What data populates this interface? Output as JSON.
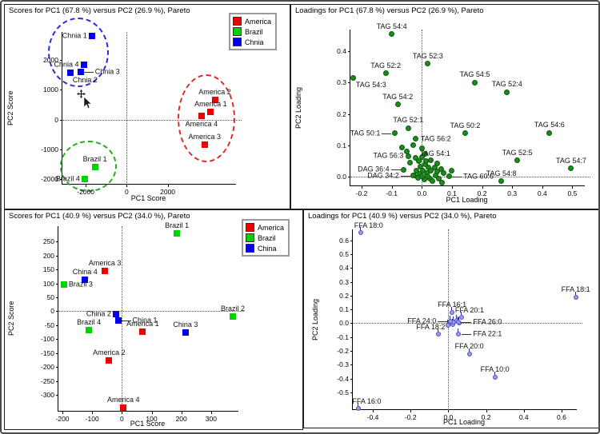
{
  "figure": {
    "background": "#ffffff",
    "accent_colors": {
      "america": "#ef0000",
      "brazil": "#00d300",
      "china": "#0000ee",
      "tag_green": "#1d8a1d",
      "ffa_lavender": "#9b9be8"
    }
  },
  "chart_data": [
    {
      "type": "scatter",
      "title": "Scores for PC1 (67.8 %) versus PC2 (26.9 %), Pareto",
      "xlabel": "PC1 Score",
      "ylabel": "PC2 Score",
      "xlim": [
        -3137,
        5373
      ],
      "ylim": [
        -2190,
        2945
      ],
      "xticks": [
        [
          -2000,
          "-2000"
        ],
        [
          0,
          "0"
        ],
        [
          2000,
          "2000"
        ]
      ],
      "yticks": [
        [
          -2000,
          "-2000"
        ],
        [
          -1000,
          "-1000"
        ],
        [
          0,
          "0"
        ],
        [
          1000,
          "1000"
        ],
        [
          2000,
          "2000"
        ]
      ],
      "marker": "square",
      "groups": {
        "america": "#ef0000",
        "brazil": "#00d300",
        "china": "#0000ee"
      },
      "legend": [
        {
          "label": "America",
          "color": "#ef0000"
        },
        {
          "label": "Brazil",
          "color": "#00d300"
        },
        {
          "label": "Chnia",
          "color": "#0000ee"
        }
      ],
      "points": [
        {
          "label": "Chnia 1",
          "x": -1700,
          "y": 2800,
          "g": "china",
          "lpos": "left"
        },
        {
          "label": "Chnia 4",
          "x": -2100,
          "y": 1850,
          "g": "china",
          "lpos": "left"
        },
        {
          "label": "Chnia 3",
          "x": -2250,
          "y": 1600,
          "g": "china",
          "lpos": "right-line"
        },
        {
          "label": "Chnia 2",
          "x": -2750,
          "y": 1570,
          "g": "china",
          "lpos": "below-right"
        },
        {
          "label": "America 2",
          "x": 4300,
          "y": 650,
          "g": "america",
          "lpos": "above"
        },
        {
          "label": "America 1",
          "x": 4100,
          "y": 250,
          "g": "america",
          "lpos": "above"
        },
        {
          "label": "America 4",
          "x": 3650,
          "y": 130,
          "g": "america",
          "lpos": "below"
        },
        {
          "label": "America 3",
          "x": 3800,
          "y": -840,
          "g": "america",
          "lpos": "above"
        },
        {
          "label": "Brazil 1",
          "x": -1550,
          "y": -1600,
          "g": "brazil",
          "lpos": "above"
        },
        {
          "label": "Brazil 4",
          "x": -2050,
          "y": -2000,
          "g": "brazil",
          "lpos": "left"
        }
      ],
      "extra_points": [],
      "ellipses": [
        {
          "cx": -2350,
          "cy": 2260,
          "rx": 1490,
          "ry": 1175,
          "color": "#2a2ae0"
        },
        {
          "cx": 3880,
          "cy": 50,
          "rx": 1410,
          "ry": 1480,
          "color": "#e02a2a"
        },
        {
          "cx": -1860,
          "cy": -1570,
          "rx": 1390,
          "ry": 865,
          "color": "#22b022"
        }
      ],
      "cursor": {
        "x": -2050,
        "y": 750
      }
    },
    {
      "type": "scatter",
      "title": "Loadings for PC1 (67.8 %) versus PC2 (26.9 %), Pareto",
      "xlabel": "PC1 Loading",
      "ylabel": "PC2 Loading",
      "xlim": [
        -0.2373,
        0.544
      ],
      "ylim": [
        -0.0308,
        0.4692
      ],
      "xticks": [
        [
          -0.2,
          "-0.2"
        ],
        [
          -0.1,
          "-0.1"
        ],
        [
          0,
          "0.0"
        ],
        [
          0.1,
          "0.1"
        ],
        [
          0.2,
          "0.2"
        ],
        [
          0.3,
          "0.3"
        ],
        [
          0.4,
          "0.4"
        ],
        [
          0.5,
          "0.5"
        ]
      ],
      "yticks": [
        [
          0,
          "0.0"
        ],
        [
          0.1,
          "0.1"
        ],
        [
          0.2,
          "0.2"
        ],
        [
          0.3,
          "0.3"
        ],
        [
          0.4,
          "0.4"
        ]
      ],
      "marker": "dot",
      "color": "#1d8a1d",
      "points": [
        {
          "label": "TAG 54:4",
          "x": -0.1,
          "y": 0.455,
          "lpos": "above"
        },
        {
          "label": "TAG 52:3",
          "x": 0.02,
          "y": 0.36,
          "lpos": "above"
        },
        {
          "label": "TAG 52:2",
          "x": -0.12,
          "y": 0.33,
          "lpos": "above"
        },
        {
          "label": "TAG 54:3",
          "x": -0.227,
          "y": 0.315,
          "lpos": "below-right"
        },
        {
          "label": "TAG 54:5",
          "x": 0.176,
          "y": 0.3,
          "lpos": "above"
        },
        {
          "label": "TAG 52:4",
          "x": 0.283,
          "y": 0.27,
          "lpos": "above"
        },
        {
          "label": "TAG 54:2",
          "x": -0.08,
          "y": 0.23,
          "lpos": "above"
        },
        {
          "label": "TAG 52:1",
          "x": -0.045,
          "y": 0.155,
          "lpos": "above"
        },
        {
          "label": "TAG 50:2",
          "x": 0.144,
          "y": 0.138,
          "lpos": "above"
        },
        {
          "label": "TAG 54:6",
          "x": 0.424,
          "y": 0.14,
          "lpos": "above"
        },
        {
          "label": "TAG 50:1",
          "x": -0.09,
          "y": 0.138,
          "lpos": "left-line"
        },
        {
          "label": "TAG 56:2",
          "x": -0.02,
          "y": 0.12,
          "lpos": "right"
        },
        {
          "label": "TAG 56:3",
          "x": -0.045,
          "y": 0.065,
          "lpos": "left"
        },
        {
          "label": "TAG 54:1",
          "x": 0.015,
          "y": 0.05,
          "lpos": "above-right"
        },
        {
          "label": "DAG 36:4",
          "x": -0.06,
          "y": 0.022,
          "lpos": "left-line"
        },
        {
          "label": "DAG 34:2",
          "x": -0.028,
          "y": 0.003,
          "lpos": "left-line"
        },
        {
          "label": "TAG 60:6",
          "x": 0.09,
          "y": 0.0,
          "lpos": "right-line"
        },
        {
          "label": "TAG 54:8",
          "x": 0.264,
          "y": -0.015,
          "lpos": "above"
        },
        {
          "label": "TAG 52:5",
          "x": 0.317,
          "y": 0.051,
          "lpos": "above"
        },
        {
          "label": "TAG 54:7",
          "x": 0.496,
          "y": 0.026,
          "lpos": "above"
        }
      ],
      "extra_points": [
        [
          -0.067,
          0.092
        ],
        [
          -0.05,
          0.08
        ],
        [
          -0.03,
          0.1
        ],
        [
          -0.02,
          0.06
        ],
        [
          -0.04,
          0.045
        ],
        [
          -0.01,
          0.05
        ],
        [
          0.0,
          0.09
        ],
        [
          0.0,
          0.062
        ],
        [
          -0.005,
          0.032
        ],
        [
          0.012,
          0.04
        ],
        [
          0.022,
          0.028
        ],
        [
          -0.018,
          0.018
        ],
        [
          -0.008,
          0.01
        ],
        [
          0.002,
          0.02
        ],
        [
          0.016,
          0.012
        ],
        [
          0.03,
          0.02
        ],
        [
          0.042,
          0.03
        ],
        [
          0.052,
          0.016
        ],
        [
          0.063,
          0.024
        ],
        [
          0.072,
          0.012
        ],
        [
          0.046,
          0.004
        ],
        [
          0.026,
          -0.006
        ],
        [
          0.008,
          -0.01
        ],
        [
          -0.012,
          -0.004
        ],
        [
          0.036,
          -0.014
        ],
        [
          0.056,
          -0.006
        ],
        [
          0.068,
          -0.02
        ],
        [
          0.1,
          0.02
        ],
        [
          0.0,
          0.0
        ],
        [
          0.02,
          0.002
        ],
        [
          -0.025,
          0.004
        ],
        [
          0.05,
          0.042
        ],
        [
          0.03,
          0.052
        ],
        [
          0.012,
          0.072
        ]
      ],
      "ellipses": []
    },
    {
      "type": "scatter",
      "title": "Scores for PC1 (40.9 %) versus PC2 (34.0 %), Pareto",
      "xlabel": "PC1 Score",
      "ylabel": "PC2 Score",
      "xlim": [
        -213.5,
        394.6
      ],
      "ylim": [
        -359,
        304.6
      ],
      "xticks": [
        [
          -200,
          "-200"
        ],
        [
          -100,
          "-100"
        ],
        [
          0,
          "0"
        ],
        [
          100,
          "100"
        ],
        [
          200,
          "200"
        ],
        [
          300,
          "300"
        ]
      ],
      "yticks": [
        [
          -300,
          "-300"
        ],
        [
          -250,
          "-250"
        ],
        [
          -200,
          "-200"
        ],
        [
          -150,
          "-150"
        ],
        [
          -100,
          "-100"
        ],
        [
          -50,
          "-50"
        ],
        [
          0,
          "0"
        ],
        [
          50,
          "50"
        ],
        [
          100,
          "100"
        ],
        [
          150,
          "150"
        ],
        [
          200,
          "200"
        ],
        [
          250,
          "250"
        ]
      ],
      "marker": "square",
      "groups": {
        "america": "#ef0000",
        "brazil": "#00d300",
        "china": "#0000ee"
      },
      "legend": [
        {
          "label": "America",
          "color": "#ef0000"
        },
        {
          "label": "Brazil",
          "color": "#00d300"
        },
        {
          "label": "China",
          "color": "#0000ee"
        }
      ],
      "points": [
        {
          "label": "Brazil 1",
          "x": 185,
          "y": 280,
          "g": "brazil",
          "lpos": "above"
        },
        {
          "label": "America 3",
          "x": -57,
          "y": 144,
          "g": "america",
          "lpos": "above"
        },
        {
          "label": "China 4",
          "x": -124,
          "y": 112,
          "g": "china",
          "lpos": "above"
        },
        {
          "label": "Brazil 3",
          "x": -195,
          "y": 95,
          "g": "brazil",
          "lpos": "right"
        },
        {
          "label": "China 2",
          "x": -20,
          "y": -9,
          "g": "china",
          "lpos": "left"
        },
        {
          "label": "China 1",
          "x": -13,
          "y": -33,
          "g": "china",
          "lpos": "right-line"
        },
        {
          "label": "Brazil 2",
          "x": 373,
          "y": -20,
          "g": "brazil",
          "lpos": "above"
        },
        {
          "label": "Brazil 4",
          "x": -111,
          "y": -66,
          "g": "brazil",
          "lpos": "above"
        },
        {
          "label": "America 1",
          "x": 70,
          "y": -72,
          "g": "america",
          "lpos": "above"
        },
        {
          "label": "China 3",
          "x": 214,
          "y": -75,
          "g": "china",
          "lpos": "above"
        },
        {
          "label": "America 2",
          "x": -43,
          "y": -175,
          "g": "america",
          "lpos": "above"
        },
        {
          "label": "America 4",
          "x": 5,
          "y": -345,
          "g": "america",
          "lpos": "above"
        }
      ],
      "extra_points": [],
      "ellipses": []
    },
    {
      "type": "scatter",
      "title": "Loadings for PC1 (40.9 %) versus PC2 (34.0 %), Pareto",
      "xlabel": "PC1 Loading",
      "ylabel": "PC2 Loading",
      "xlim": [
        -0.5064,
        0.6851
      ],
      "ylim": [
        -0.628,
        0.68
      ],
      "xticks": [
        [
          -0.4,
          "-0.4"
        ],
        [
          -0.2,
          "-0.2"
        ],
        [
          0,
          "0.0"
        ],
        [
          0.2,
          "0.2"
        ],
        [
          0.4,
          "0.4"
        ],
        [
          0.6,
          "0.6"
        ]
      ],
      "yticks": [
        [
          -0.5,
          "-0.5"
        ],
        [
          -0.4,
          "-0.4"
        ],
        [
          -0.3,
          "-0.3"
        ],
        [
          -0.2,
          "-0.2"
        ],
        [
          -0.1,
          "-0.1"
        ],
        [
          0,
          "0.0"
        ],
        [
          0.1,
          "0.1"
        ],
        [
          0.2,
          "0.2"
        ],
        [
          0.3,
          "0.3"
        ],
        [
          0.4,
          "0.4"
        ],
        [
          0.5,
          "0.5"
        ],
        [
          0.6,
          "0.6"
        ]
      ],
      "marker": "pin",
      "color": "#9b9be8",
      "points": [
        {
          "label": "FFA 18:0",
          "x": -0.465,
          "y": 0.655,
          "lpos": "above-right"
        },
        {
          "label": "FFA 18:1",
          "x": 0.675,
          "y": 0.19,
          "lpos": "above"
        },
        {
          "label": "FFA 16:1",
          "x": 0.02,
          "y": 0.08,
          "lpos": "above"
        },
        {
          "label": "FFA 20:1",
          "x": 0.07,
          "y": 0.045,
          "lpos": "above-right"
        },
        {
          "label": "FFA 24:0",
          "x": 0.012,
          "y": 0.012,
          "lpos": "left-line"
        },
        {
          "label": "FFA 26:0",
          "x": 0.055,
          "y": 0.008,
          "lpos": "right-line"
        },
        {
          "label": "FFA 18:2",
          "x": -0.051,
          "y": -0.076,
          "lpos": "above-left"
        },
        {
          "label": "FFA 22:1",
          "x": 0.055,
          "y": -0.076,
          "lpos": "right-line"
        },
        {
          "label": "FFA 20:0",
          "x": 0.111,
          "y": -0.22,
          "lpos": "above"
        },
        {
          "label": "FFA 10:0",
          "x": 0.247,
          "y": -0.39,
          "lpos": "above"
        },
        {
          "label": "FFA 16:0",
          "x": -0.475,
          "y": -0.615,
          "lpos": "above-right"
        }
      ],
      "extra_points": [
        [
          0.012,
          0.0
        ],
        [
          0.025,
          -0.012
        ],
        [
          0.032,
          0.004
        ],
        [
          0.002,
          -0.02
        ],
        [
          0.045,
          0.015
        ],
        [
          0.06,
          0.002
        ]
      ],
      "ellipses": []
    }
  ]
}
